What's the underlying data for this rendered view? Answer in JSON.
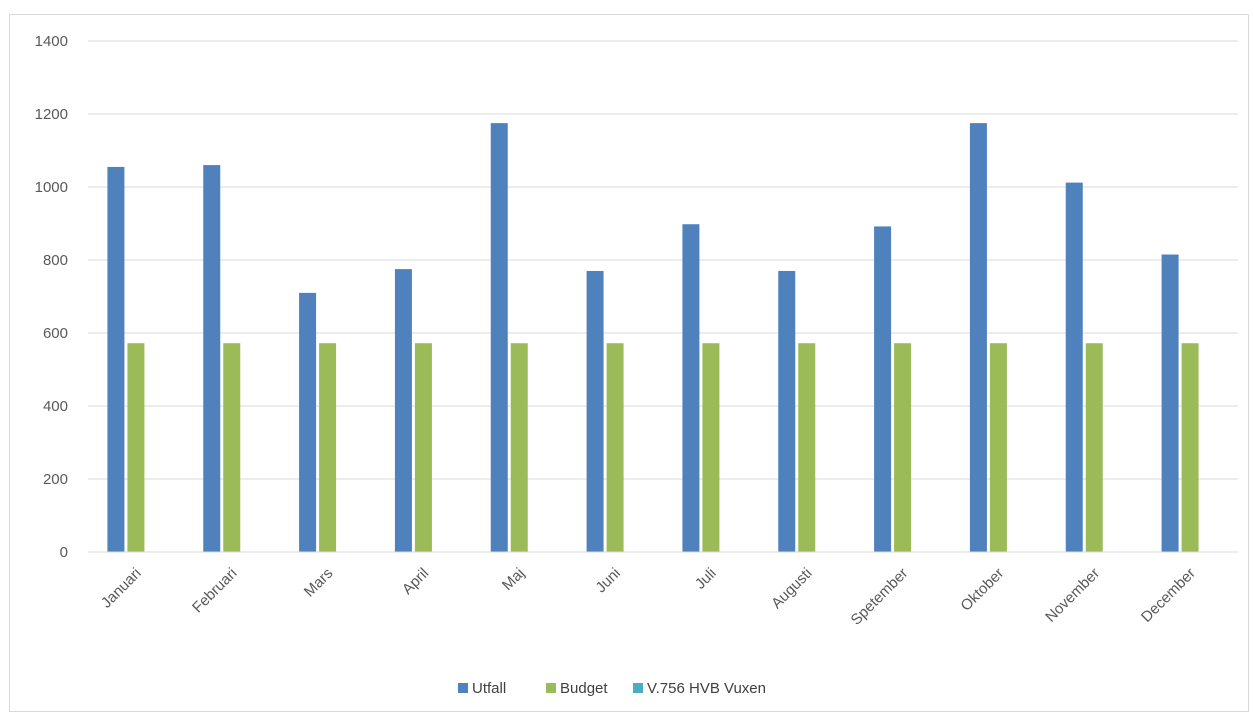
{
  "chart_data": {
    "type": "bar",
    "title": "",
    "xlabel": "",
    "ylabel": "",
    "ylim": [
      0,
      1400
    ],
    "ytick_step": 200,
    "yticks": [
      "0",
      "200",
      "400",
      "600",
      "800",
      "1000",
      "1200",
      "1400"
    ],
    "grid": true,
    "legend_position": "bottom",
    "categories": [
      "Januari",
      "Februari",
      "Mars",
      "April",
      "Maj",
      "Juni",
      "Juli",
      "Augusti",
      "Spetember",
      "Oktober",
      "November",
      "December"
    ],
    "series": [
      {
        "name": "Utfall",
        "color": "#4f81bd",
        "values": [
          1055,
          1060,
          710,
          775,
          1175,
          770,
          898,
          770,
          892,
          1175,
          1012,
          815
        ]
      },
      {
        "name": "Budget",
        "color": "#9bbb59",
        "values": [
          572,
          572,
          572,
          572,
          572,
          572,
          572,
          572,
          572,
          572,
          572,
          572
        ]
      },
      {
        "name": "V.756 HVB Vuxen",
        "color": "#4bacc6",
        "values": [
          0,
          0,
          0,
          0,
          0,
          0,
          0,
          0,
          0,
          0,
          0,
          0
        ]
      }
    ]
  }
}
